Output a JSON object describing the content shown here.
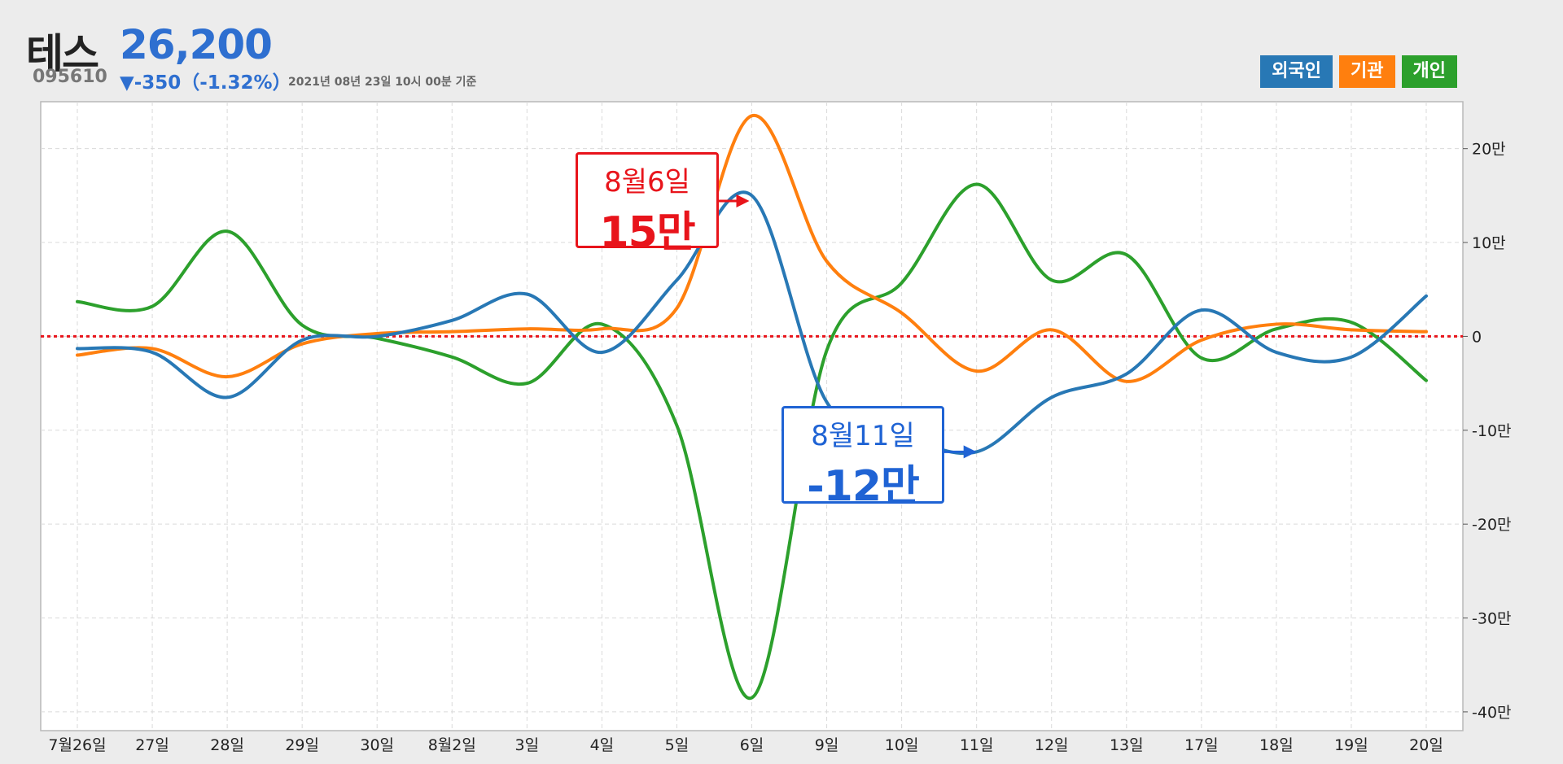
{
  "header": {
    "stock_name": "테스",
    "price": "26,200",
    "code": "095610",
    "change": "▼-350（-1.32%）",
    "as_of": "2021년 08년 23일 10시 00분 기준"
  },
  "legend": [
    {
      "label": "외국인",
      "color": "#2878b5"
    },
    {
      "label": "기관",
      "color": "#ff7f0e"
    },
    {
      "label": "개인",
      "color": "#2ca02c"
    }
  ],
  "callouts": {
    "red": {
      "date": "8월6일",
      "value": "15만"
    },
    "blue": {
      "date": "8월11일",
      "value": "-12만"
    }
  },
  "chart_data": {
    "type": "line",
    "categories": [
      "7월26일",
      "27일",
      "28일",
      "29일",
      "30일",
      "8월2일",
      "3일",
      "4일",
      "5일",
      "6일",
      "9일",
      "10일",
      "11일",
      "12일",
      "13일",
      "17일",
      "18일",
      "19일",
      "20일"
    ],
    "y_unit": "만",
    "ylim": [
      -42,
      25
    ],
    "y_ticks": [
      20,
      10,
      0,
      -10,
      -20,
      -30,
      -40
    ],
    "y_tick_labels": [
      "20만",
      "10만",
      "0",
      "-10만",
      "-20만",
      "-30만",
      "-40만"
    ],
    "y_axis_position": "right",
    "grid": true,
    "zero_line": {
      "color": "#e8141b",
      "style": "dotted"
    },
    "legend_position": "top-right",
    "series": [
      {
        "name": "외국인",
        "color": "#2878b5",
        "values": [
          -1.3,
          -1.7,
          -6.5,
          -0.4,
          0,
          1.7,
          4.5,
          -1.7,
          6,
          15,
          -7,
          -10.5,
          -12.3,
          -6.5,
          -4,
          2.8,
          -1.7,
          -2.2,
          4.3
        ]
      },
      {
        "name": "기관",
        "color": "#ff7f0e",
        "values": [
          -2,
          -1.3,
          -4.3,
          -0.8,
          0.3,
          0.5,
          0.8,
          0.8,
          3,
          23.5,
          8,
          2.5,
          -3.7,
          0.7,
          -4.8,
          -0.4,
          1.3,
          0.7,
          0.5
        ]
      },
      {
        "name": "개인",
        "color": "#2ca02c",
        "values": [
          3.7,
          3.2,
          11.2,
          1.2,
          -0.2,
          -2.2,
          -5,
          1.3,
          -9.5,
          -38.5,
          -1.5,
          5.7,
          16.2,
          6,
          8.7,
          -2.3,
          0.8,
          1.5,
          -4.7
        ]
      }
    ]
  }
}
